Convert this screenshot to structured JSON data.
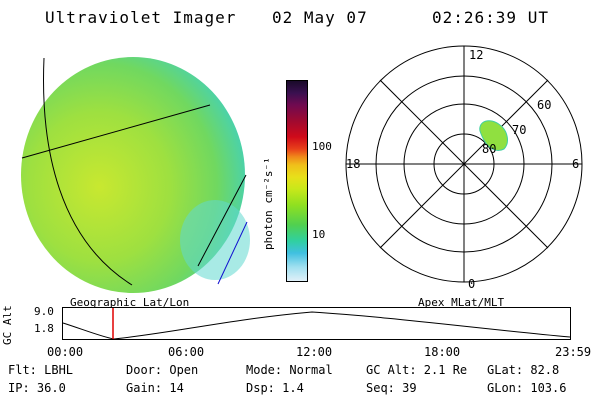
{
  "header": {
    "title": "Ultraviolet Imager",
    "date": "02 May 07",
    "time": "02:26:39 UT"
  },
  "colorbar": {
    "unit_label": "photon cm⁻²s⁻¹",
    "ticks": [
      "100",
      "10"
    ],
    "colors": [
      "#1a0a2a",
      "#3a1050",
      "#700a50",
      "#a00a30",
      "#d00a1a",
      "#e8401a",
      "#f08a1a",
      "#f0c01a",
      "#e8e01a",
      "#c8e81a",
      "#90e020",
      "#50d050",
      "#30d0a0",
      "#40c0e0",
      "#a0e0f0",
      "#e0f0f8"
    ]
  },
  "image_panel": {
    "label": "Geographic Lat/Lon",
    "fill_color": "#a8e040"
  },
  "polar_panel": {
    "label": "Apex MLat/MLT",
    "mlt_labels": {
      "top": "12",
      "left": "18",
      "right": "6",
      "bottom": "0"
    },
    "lat_labels": [
      "60",
      "70",
      "80"
    ]
  },
  "timeline": {
    "ylabel": "GC Alt",
    "y_ticks": [
      "9.0",
      "1.8"
    ],
    "x_ticks": [
      "00:00",
      "06:00",
      "12:00",
      "18:00",
      "23:59"
    ],
    "marker_time": "02:26",
    "marker_color": "#e00000"
  },
  "info": {
    "flt": "Flt: LBHL",
    "door": "Door: Open",
    "mode": "Mode: Normal",
    "gc_alt": "GC Alt: 2.1 Re",
    "glat": "GLat:  82.8",
    "ip": "IP: 36.0",
    "gain": "Gain: 14",
    "dsp": "Dsp:   1.4",
    "seq": "Seq: 39",
    "glon": "GLon: 103.6"
  }
}
